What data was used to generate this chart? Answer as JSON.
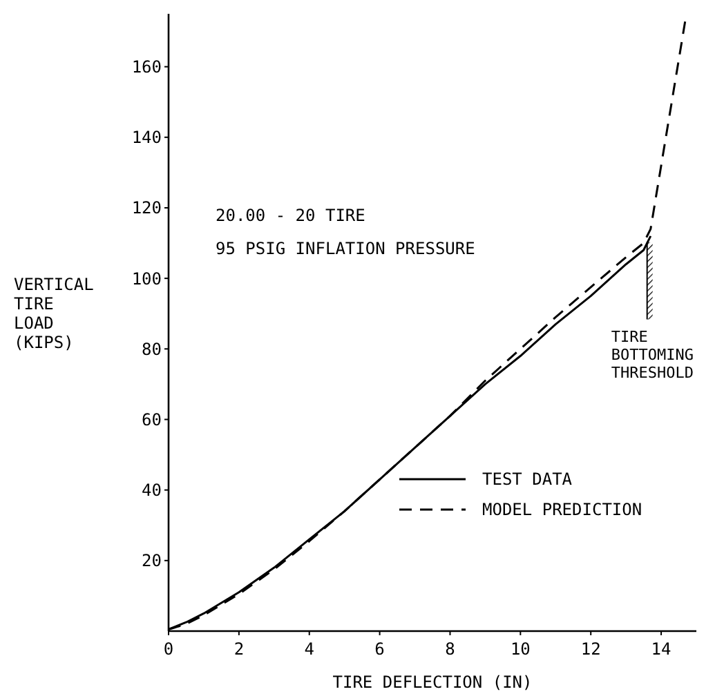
{
  "chart_data": {
    "type": "line",
    "xlabel": "TIRE DEFLECTION (IN)",
    "ylabel": "VERTICAL\nTIRE\nLOAD\n(KIPS)",
    "xlim": [
      0,
      15
    ],
    "xticks": [
      0,
      2,
      4,
      6,
      8,
      10,
      12,
      14
    ],
    "ylim": [
      0,
      175
    ],
    "yticks": [
      20,
      40,
      60,
      80,
      100,
      120,
      140,
      160
    ],
    "grid": false,
    "legend": "bottom right",
    "marker": "none",
    "series": [
      {
        "name": "TEST DATA",
        "color": "#000000",
        "line_style": "solid",
        "x": [
          0,
          0.5,
          1,
          2,
          3,
          4,
          5,
          6,
          7,
          8,
          9,
          10,
          11,
          12,
          13,
          13.5,
          13.7
        ],
        "values": [
          0.5,
          2.5,
          5,
          11,
          18,
          26,
          34,
          43,
          52,
          61,
          70,
          78,
          87,
          95,
          104,
          108,
          112
        ]
      },
      {
        "name": "MODEL PREDICTION",
        "color": "#000000",
        "line_style": "dashed",
        "x": [
          0,
          0.5,
          1,
          2,
          3,
          4,
          5,
          6,
          7,
          8,
          9,
          10,
          11,
          12,
          13,
          13.5,
          13.7,
          14.7
        ],
        "values": [
          0.5,
          2,
          4.5,
          10.5,
          17.5,
          25.5,
          34,
          43,
          52,
          61,
          71,
          80,
          89,
          97.5,
          106,
          110,
          114,
          174
        ]
      }
    ],
    "ref_lines": [
      {
        "axis": "x",
        "value": 13.6,
        "label": "TIRE\nBOTTOMING\nTHRESHOLD"
      }
    ],
    "annotations": [
      "20.00 - 20 TIRE",
      "95 PSIG INFLATION PRESSURE"
    ]
  }
}
